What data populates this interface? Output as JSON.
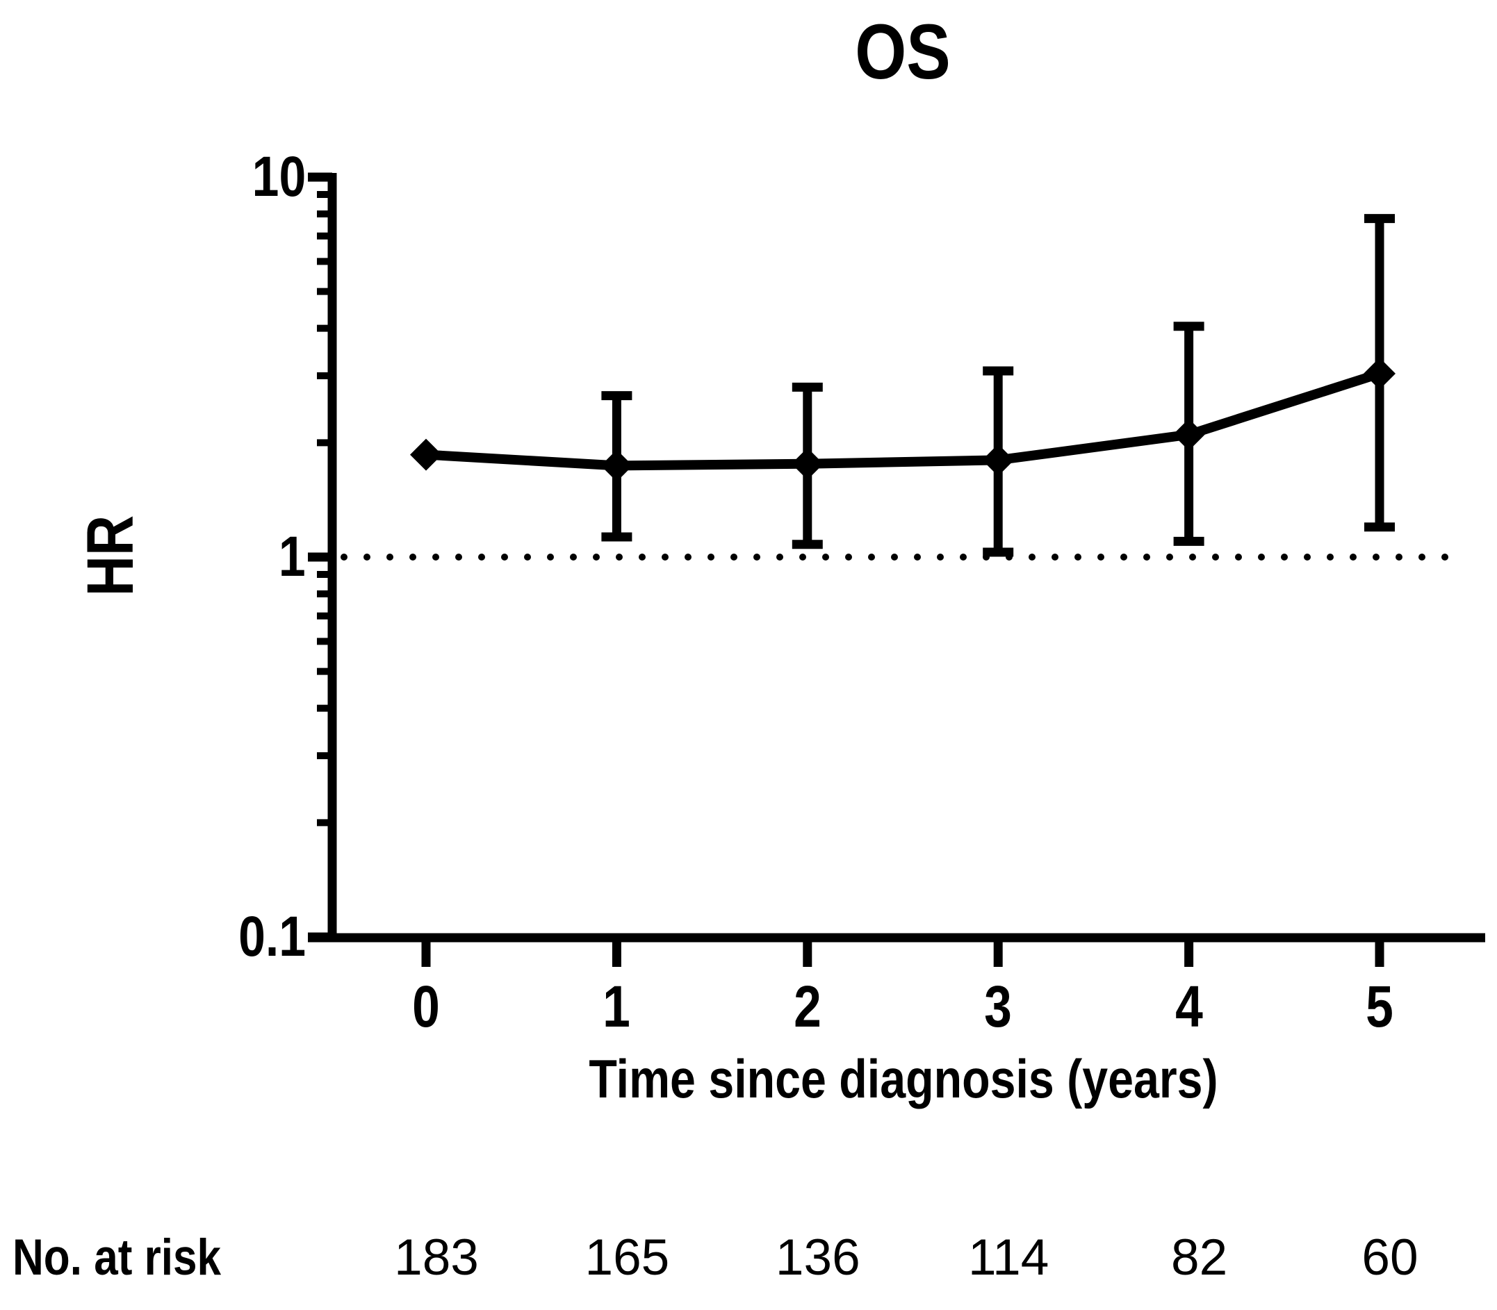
{
  "page": {
    "background_color": "#ffffff",
    "foreground_color": "#000000"
  },
  "chart_data": {
    "type": "line",
    "title": "OS",
    "xlabel": "Time since diagnosis (years)",
    "ylabel": "HR",
    "yscale": "log",
    "ylim": [
      0.1,
      10
    ],
    "y_ticks": [
      10,
      1,
      0.1
    ],
    "x_ticks": [
      0,
      1,
      2,
      3,
      4,
      5
    ],
    "grid": false,
    "legend": false,
    "marker": "diamond",
    "reference_line_y": 1,
    "reference_line_style": "dotted",
    "series": [
      {
        "name": "HR",
        "x": [
          0,
          1,
          2,
          3,
          4,
          5
        ],
        "values": [
          1.86,
          1.74,
          1.76,
          1.8,
          2.1,
          3.04
        ],
        "ci_lower": [
          null,
          1.13,
          1.08,
          1.03,
          1.1,
          1.2
        ],
        "ci_upper": [
          null,
          2.66,
          2.8,
          3.09,
          4.05,
          7.78
        ],
        "color": "#000000"
      }
    ],
    "at_risk": {
      "label": "No. at risk",
      "values": [
        183,
        165,
        136,
        114,
        82,
        60
      ]
    }
  }
}
